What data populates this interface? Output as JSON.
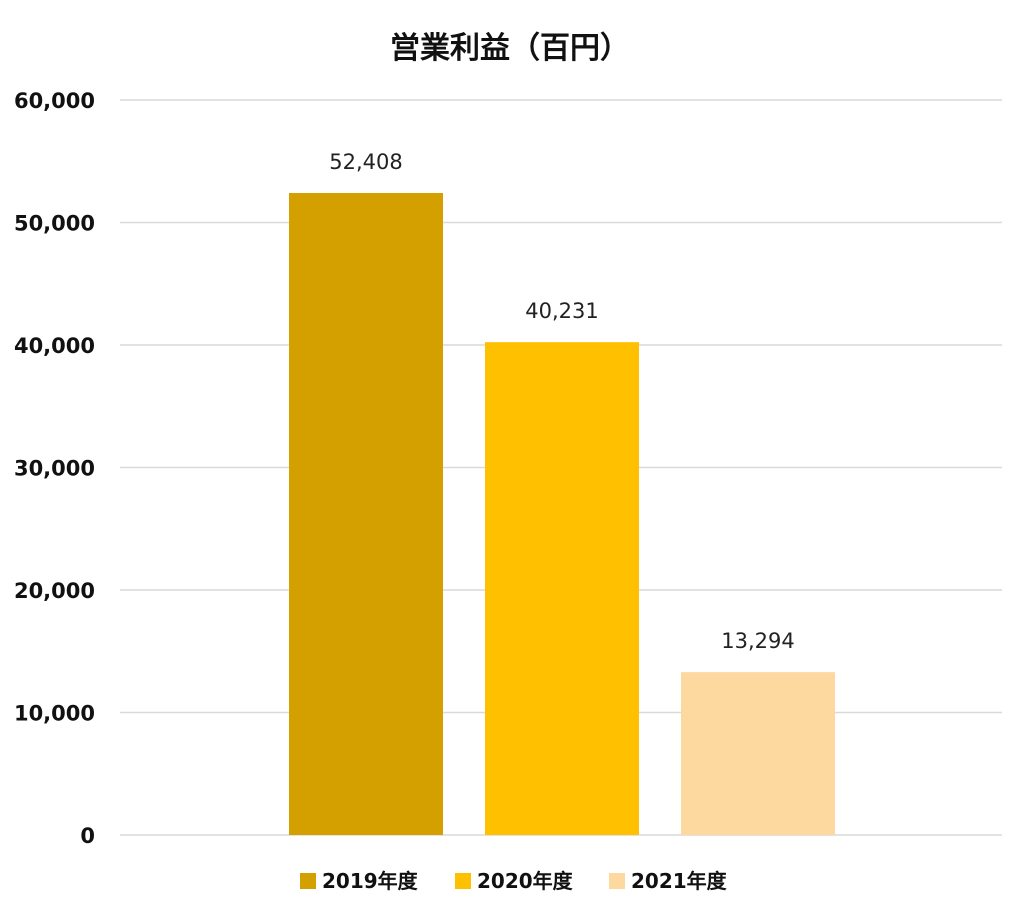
{
  "chart_data": {
    "type": "bar",
    "title": "営業利益（百円）",
    "xlabel": "",
    "ylabel": "",
    "ylim": [
      0,
      60000
    ],
    "yticks": [
      0,
      10000,
      20000,
      30000,
      40000,
      50000,
      60000
    ],
    "ytick_labels": [
      "0",
      "10,000",
      "20,000",
      "30,000",
      "40,000",
      "50,000",
      "60,000"
    ],
    "grid": true,
    "legend_position": "bottom",
    "series": [
      {
        "name": "2019年度",
        "value": 52408,
        "label": "52,408",
        "color": "#D4A000"
      },
      {
        "name": "2020年度",
        "value": 40231,
        "label": "40,231",
        "color": "#FFC000"
      },
      {
        "name": "2021年度",
        "value": 13294,
        "label": "13,294",
        "color": "#FDD9A0"
      }
    ]
  }
}
